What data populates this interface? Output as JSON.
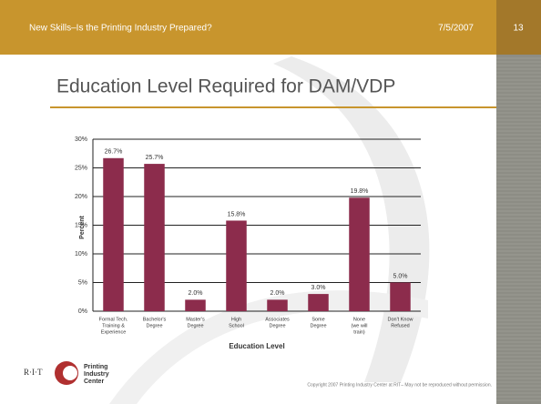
{
  "header": {
    "title": "New Skills–Is the Printing Industry Prepared?",
    "date": "7/5/2007",
    "page": "13"
  },
  "slide_title": "Education Level Required for DAM/VDP",
  "logo": {
    "rit": "R·I·T",
    "lines": [
      "Printing",
      "Industry",
      "Center"
    ]
  },
  "footer": {
    "copyright": "Copyright 2007 Printing Industry Center at RIT– May not be reproduced without permission."
  },
  "chart_data": {
    "type": "bar",
    "y_label": "Percent",
    "x_label": "Education Level",
    "categories": [
      [
        "Formal Tech.",
        "Training &",
        "Experience"
      ],
      [
        "Bachelor's",
        "Degree"
      ],
      [
        "Master's",
        "Degree"
      ],
      [
        "High",
        "School"
      ],
      [
        "Associates",
        "Degree"
      ],
      [
        "Some",
        "Degree"
      ],
      [
        "None",
        "(we will",
        "train)"
      ],
      [
        "Don't Know",
        "Refused"
      ]
    ],
    "values": [
      26.7,
      25.7,
      2.0,
      15.8,
      2.0,
      3.0,
      19.8,
      5.0
    ],
    "value_labels": [
      "26.7%",
      "25.7%",
      "2.0%",
      "15.8%",
      "2.0%",
      "3.0%",
      "19.8%",
      "5.0%"
    ],
    "color": "#8c2c4c",
    "ylim": [
      0,
      30
    ],
    "yticks": [
      {
        "value": 0,
        "label": "0%"
      },
      {
        "value": 5,
        "label": "5%"
      },
      {
        "value": 10,
        "label": "10%"
      },
      {
        "value": 15,
        "label": "15%"
      },
      {
        "value": 20,
        "label": "20%"
      },
      {
        "value": 25,
        "label": "25%"
      },
      {
        "value": 30,
        "label": "30%"
      }
    ],
    "grid": true
  }
}
